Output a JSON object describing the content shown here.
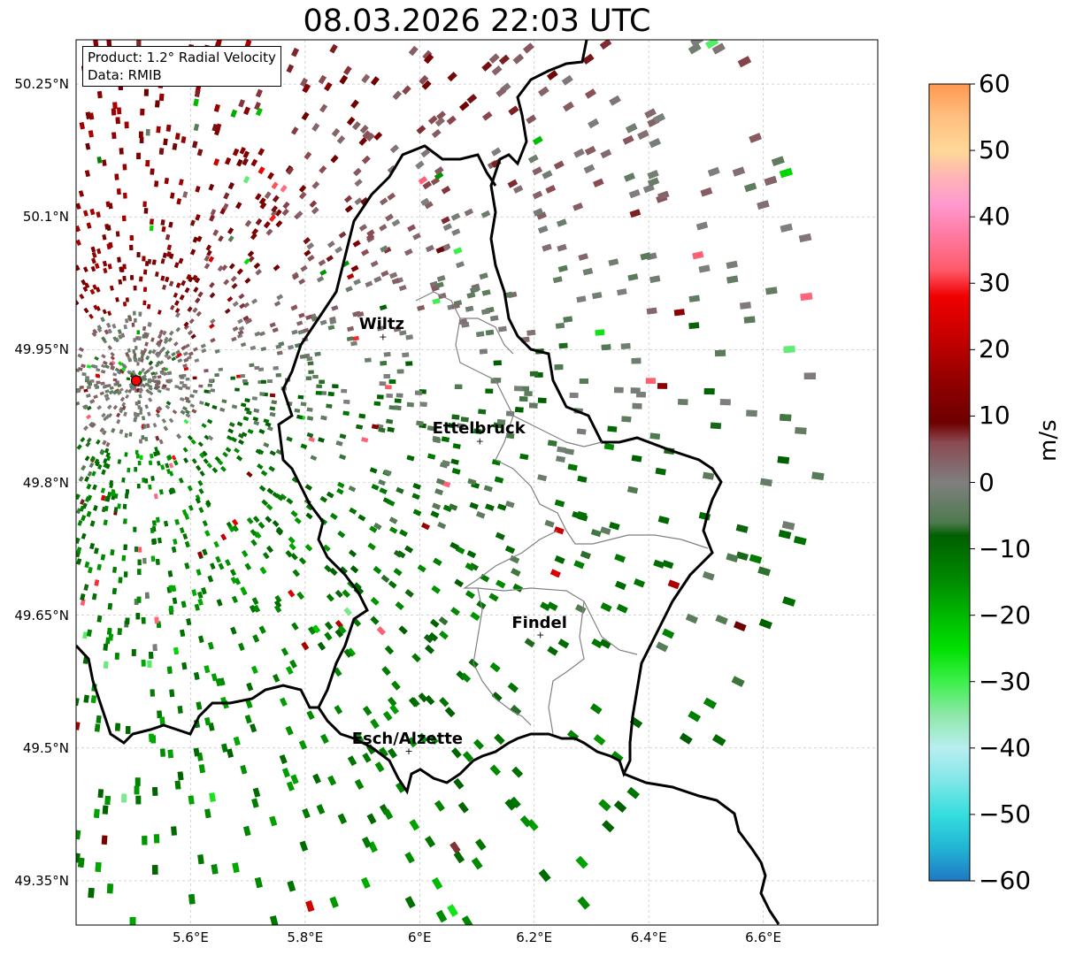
{
  "title": "08.03.2026 22:03 UTC",
  "info": {
    "product": "Product: 1.2° Radial Velocity",
    "source": "Data: RMIB"
  },
  "map": {
    "lon_range": [
      5.4,
      6.8
    ],
    "lat_range": [
      49.3,
      50.3
    ],
    "lon_ticks": [
      {
        "value": 5.6,
        "label": "5.6°E"
      },
      {
        "value": 5.8,
        "label": "5.8°E"
      },
      {
        "value": 6.0,
        "label": "6°E"
      },
      {
        "value": 6.2,
        "label": "6.2°E"
      },
      {
        "value": 6.4,
        "label": "6.4°E"
      },
      {
        "value": 6.6,
        "label": "6.6°E"
      }
    ],
    "lat_ticks": [
      {
        "value": 50.25,
        "label": "50.25°N"
      },
      {
        "value": 50.1,
        "label": "50.1°N"
      },
      {
        "value": 49.95,
        "label": "49.95°N"
      },
      {
        "value": 49.8,
        "label": "49.8°N"
      },
      {
        "value": 49.65,
        "label": "49.65°N"
      },
      {
        "value": 49.5,
        "label": "49.5°N"
      },
      {
        "value": 49.35,
        "label": "49.35°N"
      }
    ],
    "radar": {
      "lon": 5.505,
      "lat": 49.915
    },
    "cities": [
      {
        "name": "Wiltz",
        "lon": 5.935,
        "lat": 49.965
      },
      {
        "name": "Ettelbruck",
        "lon": 6.104,
        "lat": 49.847
      },
      {
        "name": "Findel",
        "lon": 6.21,
        "lat": 49.628
      },
      {
        "name": "Esch/Alzette",
        "lon": 5.98,
        "lat": 49.497
      }
    ]
  },
  "colorbar": {
    "unit": "m/s",
    "min": -60,
    "max": 60,
    "ticks": [
      {
        "value": 60,
        "label": "60"
      },
      {
        "value": 50,
        "label": "50"
      },
      {
        "value": 40,
        "label": "40"
      },
      {
        "value": 30,
        "label": "30"
      },
      {
        "value": 20,
        "label": "20"
      },
      {
        "value": 10,
        "label": "10"
      },
      {
        "value": 0,
        "label": "0"
      },
      {
        "value": -10,
        "label": "−10"
      },
      {
        "value": -20,
        "label": "−20"
      },
      {
        "value": -30,
        "label": "−30"
      },
      {
        "value": -40,
        "label": "−40"
      },
      {
        "value": -50,
        "label": "−50"
      },
      {
        "value": -60,
        "label": "−60"
      }
    ],
    "stops": [
      {
        "value": -60,
        "color": "#1f78c4"
      },
      {
        "value": -55,
        "color": "#22b5d4"
      },
      {
        "value": -50,
        "color": "#35dede"
      },
      {
        "value": -45,
        "color": "#7fe6e8"
      },
      {
        "value": -40,
        "color": "#b9eef0"
      },
      {
        "value": -35,
        "color": "#8ee8a8"
      },
      {
        "value": -30,
        "color": "#3cf04c"
      },
      {
        "value": -25,
        "color": "#00e000"
      },
      {
        "value": -20,
        "color": "#00b800"
      },
      {
        "value": -15,
        "color": "#008c00"
      },
      {
        "value": -8,
        "color": "#005f00"
      },
      {
        "value": -6,
        "color": "#4f7a4f"
      },
      {
        "value": 0,
        "color": "#7f7f7f"
      },
      {
        "value": 6,
        "color": "#8a4a52"
      },
      {
        "value": 9,
        "color": "#6e0000"
      },
      {
        "value": 15,
        "color": "#900000"
      },
      {
        "value": 22,
        "color": "#c80000"
      },
      {
        "value": 28,
        "color": "#f00000"
      },
      {
        "value": 32,
        "color": "#ff5a6a"
      },
      {
        "value": 38,
        "color": "#ff7fa8"
      },
      {
        "value": 42,
        "color": "#ff9ad0"
      },
      {
        "value": 46,
        "color": "#ffb4b4"
      },
      {
        "value": 50,
        "color": "#ffd898"
      },
      {
        "value": 55,
        "color": "#ffbf80"
      },
      {
        "value": 60,
        "color": "#ff9850"
      }
    ]
  }
}
